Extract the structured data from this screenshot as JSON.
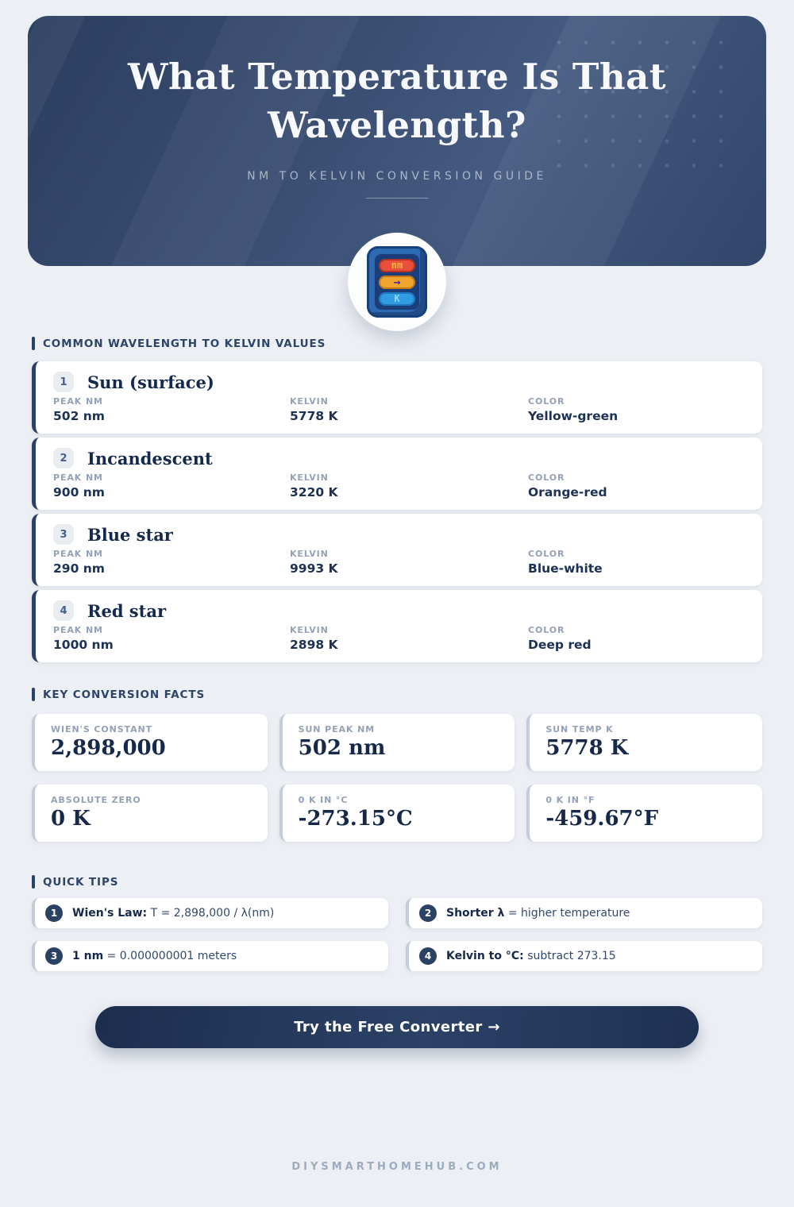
{
  "theme": {
    "page_bg": "#eceff4",
    "accent_navy": "#2c4264",
    "text_navy": "#16294a",
    "label_gray": "#94a1b6",
    "card_border_gray": "#c6ccd6",
    "hero_gradient": [
      "#2b3e5f",
      "#455a80",
      "#31466a"
    ],
    "icon_red": "#e8503c",
    "icon_orange": "#f0a52f",
    "icon_blue": "#2f9ce4"
  },
  "header": {
    "title_line1": "What Temperature Is That",
    "title_line2": "Wavelength?",
    "subtitle": "NM TO KELVIN CONVERSION GUIDE",
    "icon": {
      "nm_label": "nm",
      "arrow_glyph": "→",
      "k_label": "K"
    }
  },
  "wavelengths": {
    "heading": "COMMON WAVELENGTH TO KELVIN VALUES",
    "columns": [
      "PEAK NM",
      "KELVIN",
      "COLOR"
    ],
    "rows": [
      {
        "num": "1",
        "name": "Sun (surface)",
        "peak_nm": "502 nm",
        "kelvin": "5778 K",
        "color": "Yellow-green"
      },
      {
        "num": "2",
        "name": "Incandescent",
        "peak_nm": "900 nm",
        "kelvin": "3220 K",
        "color": "Orange-red"
      },
      {
        "num": "3",
        "name": "Blue star",
        "peak_nm": "290 nm",
        "kelvin": "9993 K",
        "color": "Blue-white"
      },
      {
        "num": "4",
        "name": "Red star",
        "peak_nm": "1000 nm",
        "kelvin": "2898 K",
        "color": "Deep red"
      }
    ]
  },
  "facts": {
    "heading": "KEY CONVERSION FACTS",
    "cards": [
      {
        "label": "WIEN'S CONSTANT",
        "value": "2,898,000"
      },
      {
        "label": "SUN PEAK NM",
        "value": "502 nm"
      },
      {
        "label": "SUN TEMP K",
        "value": "5778 K"
      },
      {
        "label": "ABSOLUTE ZERO",
        "value": "0 K"
      },
      {
        "label": "0 K IN °C",
        "value": "-273.15°C"
      },
      {
        "label": "0 K IN °F",
        "value": "-459.67°F"
      }
    ]
  },
  "tips": {
    "heading": "QUICK TIPS",
    "items": [
      {
        "num": "1",
        "bold": "Wien's Law:",
        "text": "T = 2,898,000 / λ(nm)"
      },
      {
        "num": "2",
        "bold": "Shorter λ",
        "text": "= higher temperature"
      },
      {
        "num": "3",
        "bold": "1 nm",
        "text": "= 0.000000001 meters"
      },
      {
        "num": "4",
        "bold": "Kelvin to °C:",
        "text": "subtract 273.15"
      }
    ]
  },
  "cta": {
    "label": "Try the Free Converter →"
  },
  "footer": {
    "text": "DIYSMARTHOMEHUB.COM"
  }
}
